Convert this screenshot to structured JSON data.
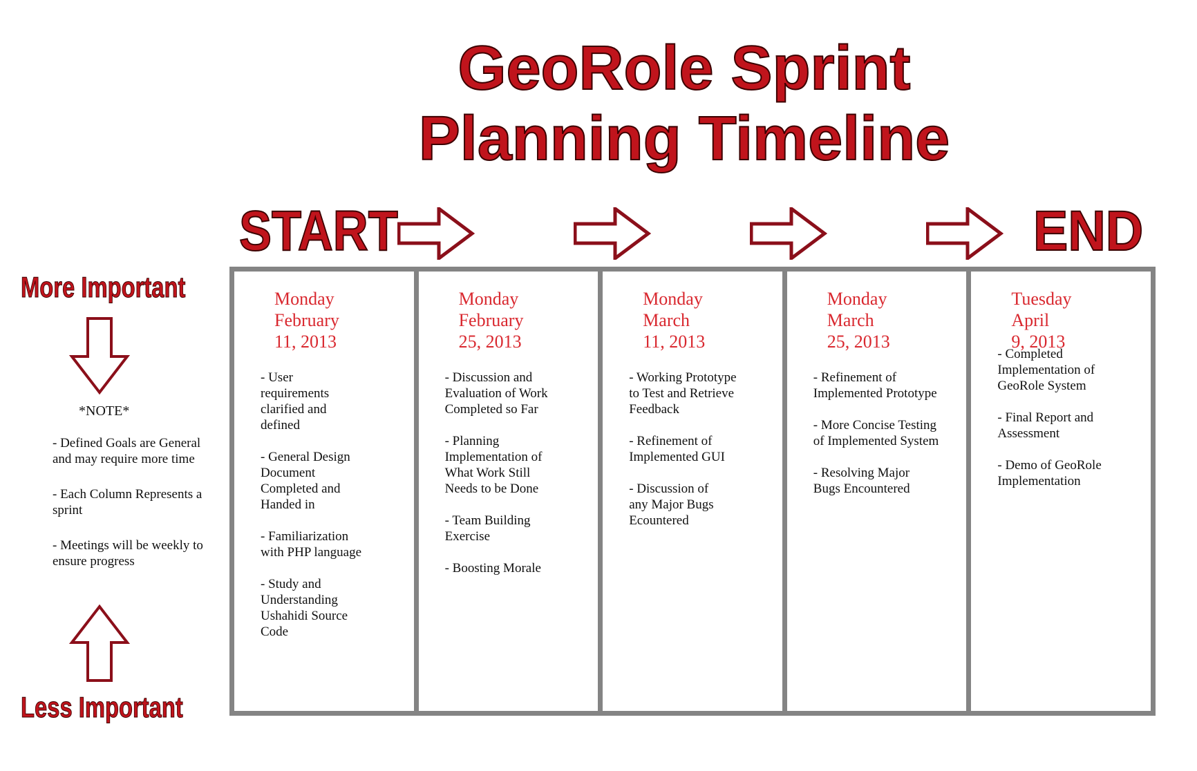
{
  "title": {
    "line1": "GeoRole Sprint",
    "line2": "Planning Timeline"
  },
  "header": {
    "start_label": "START",
    "end_label": "END"
  },
  "sidebar": {
    "top_label": "More Important",
    "bottom_label": "Less Important",
    "note_title": "*NOTE*",
    "notes": [
      " - Defined Goals are General and may require more time",
      " - Each Column Represents a sprint",
      " - Meetings will be weekly to ensure progress"
    ]
  },
  "sprints": [
    {
      "date": "Monday\nFebruary\n11, 2013",
      "tasks": [
        " - User\nrequirements\nclarified and\ndefined",
        " - General Design\nDocument\nCompleted and\nHanded in",
        " - Familiarization\nwith PHP language",
        " - Study and\nUnderstanding\nUshahidi Source\nCode"
      ]
    },
    {
      "date": "Monday\nFebruary\n25, 2013",
      "tasks": [
        " - Discussion and\nEvaluation of Work\nCompleted so Far",
        " - Planning\nImplementation of\nWhat Work Still\nNeeds to be Done",
        " - Team Building\nExercise",
        " - Boosting Morale"
      ]
    },
    {
      "date": "Monday\nMarch\n11, 2013",
      "tasks": [
        " - Working Prototype\nto Test and Retrieve\nFeedback",
        " - Refinement of\nImplemented GUI",
        " - Discussion of\nany Major Bugs\nEcountered"
      ]
    },
    {
      "date": "Monday\nMarch\n25, 2013",
      "tasks": [
        " - Refinement of\nImplemented Prototype",
        " - More Concise Testing\nof Implemented System",
        " - Resolving Major\nBugs Encountered"
      ]
    },
    {
      "date": "Tuesday\nApril\n9, 2013",
      "tasks": [
        " - Completed\nImplementation of\nGeoRole System",
        " - Final Report and\nAssessment",
        " - Demo of GeoRole\nImplementation"
      ]
    }
  ],
  "colors": {
    "accent_red": "#c0141c",
    "date_red": "#d9282f",
    "arrow_outline": "#8b0f1a",
    "column_border": "#848484"
  },
  "icons": {
    "header_arrow": "right-arrow-outline-icon",
    "side_arrows": [
      "down-arrow-outline-icon",
      "up-arrow-outline-icon"
    ]
  }
}
